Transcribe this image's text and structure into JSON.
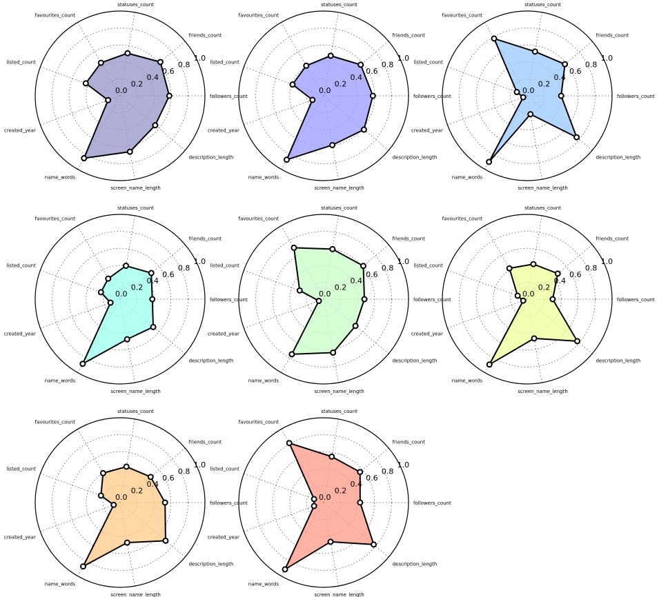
{
  "chart_data": {
    "type": "radar",
    "axes": [
      "followers_count",
      "friends_count",
      "statuses_count",
      "favourites_count",
      "listed_count",
      "created_year",
      "name_words",
      "screen_name_length",
      "description_length"
    ],
    "rgrid_ticks": [
      "0.0",
      "0.2",
      "0.4",
      "0.6",
      "0.8",
      "1.0"
    ],
    "rlim": [
      0,
      1.0
    ],
    "grid": true,
    "style": {
      "edge_color": "#000000",
      "marker_fill": "#ffffff"
    },
    "panels": [
      {
        "color": "#9c9ccc",
        "values": [
          0.58,
          0.62,
          0.51,
          0.45,
          0.43,
          0.15,
          0.85,
          0.67,
          0.54
        ]
      },
      {
        "color": "#a0a0ff",
        "values": [
          0.58,
          0.57,
          0.48,
          0.41,
          0.39,
          0.14,
          0.87,
          0.59,
          0.62
        ]
      },
      {
        "color": "#a0ccff",
        "values": [
          0.4,
          0.58,
          0.53,
          0.78,
          0.13,
          0.05,
          0.9,
          0.22,
          0.76
        ]
      },
      {
        "color": "#a0fff0",
        "values": [
          0.38,
          0.48,
          0.4,
          0.28,
          0.24,
          0.12,
          0.88,
          0.48,
          0.51
        ]
      },
      {
        "color": "#ccffcc",
        "values": [
          0.48,
          0.61,
          0.6,
          0.7,
          0.3,
          0.06,
          0.75,
          0.64,
          0.49
        ]
      },
      {
        "color": "#f0ffa0",
        "values": [
          0.3,
          0.47,
          0.42,
          0.42,
          0.12,
          0.05,
          0.89,
          0.47,
          0.77
        ]
      },
      {
        "color": "#ffcc8f",
        "values": [
          0.53,
          0.47,
          0.43,
          0.4,
          0.24,
          0.08,
          0.87,
          0.48,
          0.7
        ]
      },
      {
        "color": "#ffa08f",
        "values": [
          0.43,
          0.56,
          0.55,
          0.81,
          0.12,
          0.12,
          0.91,
          0.47,
          0.77
        ]
      }
    ]
  }
}
